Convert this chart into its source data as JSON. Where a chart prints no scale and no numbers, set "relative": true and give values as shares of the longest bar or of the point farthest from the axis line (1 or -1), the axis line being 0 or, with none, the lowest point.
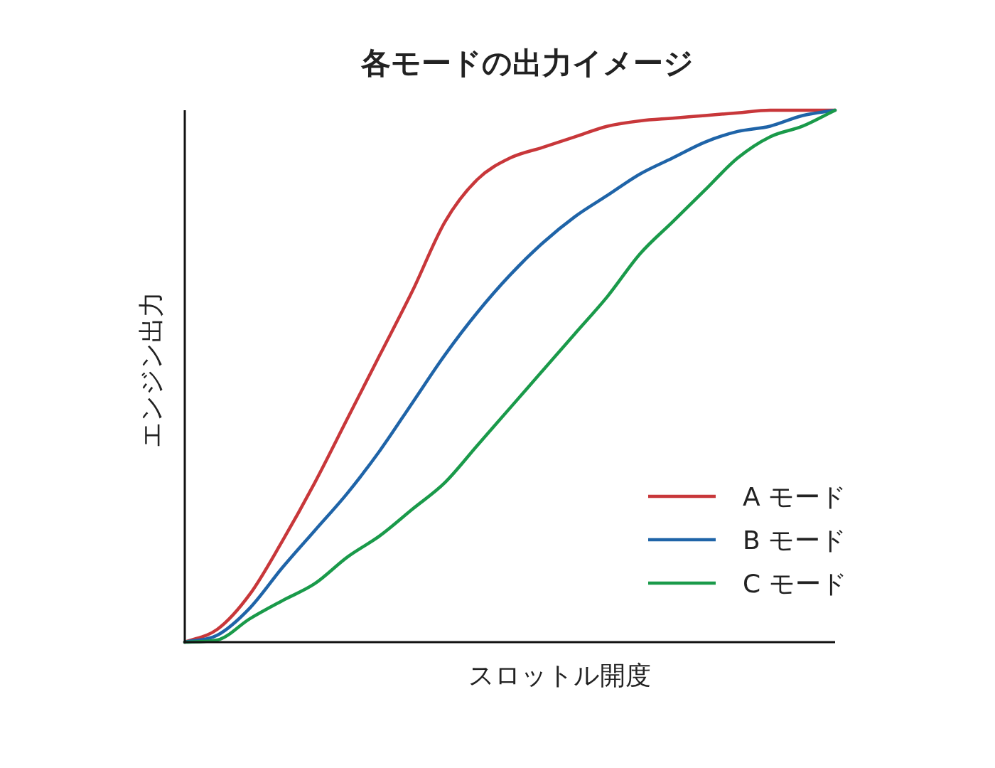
{
  "chart_data": {
    "type": "line",
    "title": "各モードの出力イメージ",
    "xlabel": "スロットル開度",
    "ylabel": "エンジン出力",
    "relative": true,
    "legend": "bottom right",
    "categories": [
      null,
      null,
      null,
      null,
      null,
      null,
      null,
      null,
      null,
      null,
      null,
      null,
      null,
      null,
      null,
      null,
      null,
      null,
      null,
      null,
      null
    ],
    "series": [
      {
        "name": "A モード",
        "color": "#c8373a",
        "values": [
          0,
          0.024,
          0.09,
          0.19,
          0.3,
          0.42,
          0.54,
          0.66,
          0.79,
          0.87,
          0.91,
          0.93,
          0.95,
          0.97,
          0.98,
          0.985,
          0.99,
          0.995,
          1.0,
          1.0,
          1.0
        ]
      },
      {
        "name": "B モード",
        "color": "#1f64a8",
        "values": [
          0,
          0.013,
          0.064,
          0.14,
          0.21,
          0.28,
          0.36,
          0.45,
          0.54,
          0.62,
          0.69,
          0.75,
          0.8,
          0.84,
          0.88,
          0.91,
          0.94,
          0.96,
          0.97,
          0.99,
          1.0
        ]
      },
      {
        "name": "C モード",
        "color": "#1a9a4a",
        "values": [
          0,
          0.004,
          0.044,
          0.078,
          0.11,
          0.16,
          0.2,
          0.25,
          0.3,
          0.37,
          0.44,
          0.51,
          0.58,
          0.65,
          0.73,
          0.79,
          0.85,
          0.91,
          0.95,
          0.97,
          1.0
        ]
      }
    ]
  }
}
